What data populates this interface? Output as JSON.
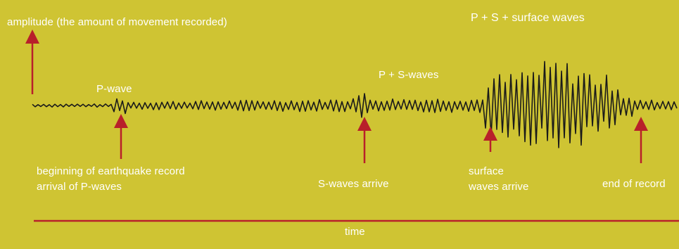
{
  "diagram": {
    "title": "P + S + surface waves",
    "amplitude_label": "amplitude (the amount of movement recorded)",
    "time_label": "time",
    "phases": {
      "p_wave": "P-wave",
      "p_s_waves": "P + S-waves"
    },
    "arrival_labels": {
      "beginning_line1": "beginning of earthquake record",
      "beginning_line2": "arrival of P-waves",
      "s_arrive": "S-waves arrive",
      "surface_line1": "surface",
      "surface_line2": "waves arrive",
      "end": "end of record"
    },
    "colors": {
      "background": "#cfc433",
      "arrow": "#b8202a",
      "trace": "#1a1a1a",
      "text": "#ffffff"
    }
  }
}
